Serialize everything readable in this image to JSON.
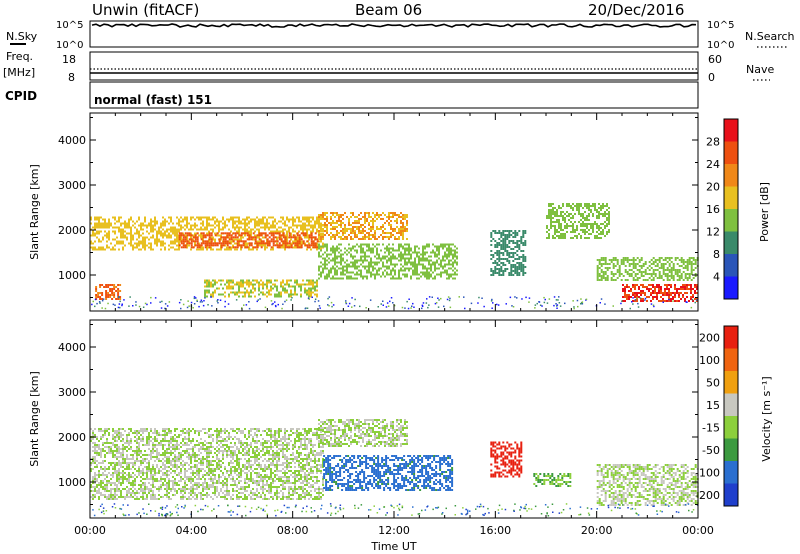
{
  "header": {
    "title": "Unwin (fitACF)",
    "beam": "Beam 06",
    "date": "20/Dec/2016"
  },
  "status_panels": {
    "nsky_label": "N.Sky",
    "nsky_ticks": [
      "10^5",
      "10^0"
    ],
    "nsearch_label": "N.Search",
    "nsearch_ticks": [
      "10^5",
      "10^0"
    ],
    "freq_label_1": "Freq.",
    "freq_label_2": "[MHz]",
    "freq_ticks": [
      "18",
      "8"
    ],
    "nave_label": "Nave",
    "nave_ticks": [
      "60",
      "0"
    ],
    "cpid_label": "CPID",
    "cpid_value": "normal (fast) 151"
  },
  "colors": {
    "power_scale": [
      "#1a1aff",
      "#2a55b8",
      "#3a8a6a",
      "#7fc040",
      "#e8c020",
      "#f08818",
      "#ee5010",
      "#e8101a"
    ],
    "velocity_scale": [
      "#1f3fcc",
      "#2a6fd0",
      "#3c9a40",
      "#8ccf3c",
      "#c8c8c0",
      "#f0a010",
      "#f06410",
      "#e82010"
    ]
  },
  "chart_data": [
    {
      "type": "heatmap",
      "name": "power-panel",
      "ylabel": "Slant Range [km]",
      "xlabel": "",
      "ylim": [
        200,
        4600
      ],
      "xlim": [
        0,
        24
      ],
      "yticks": [
        "4000",
        "3000",
        "2000",
        "1000"
      ],
      "colorbar": {
        "label": "Power [dB]",
        "ticks": [
          "28",
          "24",
          "20",
          "16",
          "12",
          "8",
          "4"
        ],
        "range": [
          0,
          32
        ]
      },
      "regions": [
        {
          "t0": 0.0,
          "t1": 9.2,
          "r0": 1550,
          "r1": 2300,
          "value": 18
        },
        {
          "t0": 3.5,
          "t1": 9.0,
          "r0": 1600,
          "r1": 1950,
          "value": 26
        },
        {
          "t0": 0.2,
          "t1": 1.2,
          "r0": 450,
          "r1": 800,
          "value": 24
        },
        {
          "t0": 4.5,
          "t1": 9.0,
          "r0": 500,
          "r1": 900,
          "value": 16
        },
        {
          "t0": 9.0,
          "t1": 14.5,
          "r0": 900,
          "r1": 1700,
          "value": 14
        },
        {
          "t0": 9.0,
          "t1": 12.5,
          "r0": 1800,
          "r1": 2400,
          "value": 20
        },
        {
          "t0": 15.8,
          "t1": 17.2,
          "r0": 1000,
          "r1": 2000,
          "value": 10
        },
        {
          "t0": 18.0,
          "t1": 20.5,
          "r0": 1800,
          "r1": 2600,
          "value": 14
        },
        {
          "t0": 20.0,
          "t1": 24.0,
          "r0": 900,
          "r1": 1400,
          "value": 14
        },
        {
          "t0": 21.0,
          "t1": 24.0,
          "r0": 400,
          "r1": 800,
          "value": 28
        }
      ]
    },
    {
      "type": "heatmap",
      "name": "velocity-panel",
      "ylabel": "Slant Range [km]",
      "xlabel": "Time UT",
      "ylim": [
        200,
        4600
      ],
      "xlim": [
        0,
        24
      ],
      "yticks": [
        "4000",
        "3000",
        "2000",
        "1000"
      ],
      "xticks": [
        "00:00",
        "04:00",
        "08:00",
        "12:00",
        "16:00",
        "20:00",
        "00:00"
      ],
      "colorbar": {
        "label": "Velocity [m s⁻¹]",
        "ticks": [
          "200",
          "100",
          "50",
          "15",
          "-15",
          "-50",
          "-100",
          "-200"
        ],
        "range": [
          -250,
          250
        ]
      },
      "regions": [
        {
          "t0": 0.0,
          "t1": 9.2,
          "r0": 600,
          "r1": 2200,
          "value": 0
        },
        {
          "t0": 9.2,
          "t1": 14.3,
          "r0": 800,
          "r1": 1600,
          "value": -150
        },
        {
          "t0": 9.0,
          "t1": 12.5,
          "r0": 1800,
          "r1": 2400,
          "value": 0
        },
        {
          "t0": 15.8,
          "t1": 17.0,
          "r0": 1100,
          "r1": 1900,
          "value": 220
        },
        {
          "t0": 20.0,
          "t1": 24.0,
          "r0": 500,
          "r1": 1400,
          "value": 0
        },
        {
          "t0": 17.5,
          "t1": 19.0,
          "r0": 900,
          "r1": 1200,
          "value": -60
        }
      ]
    }
  ]
}
